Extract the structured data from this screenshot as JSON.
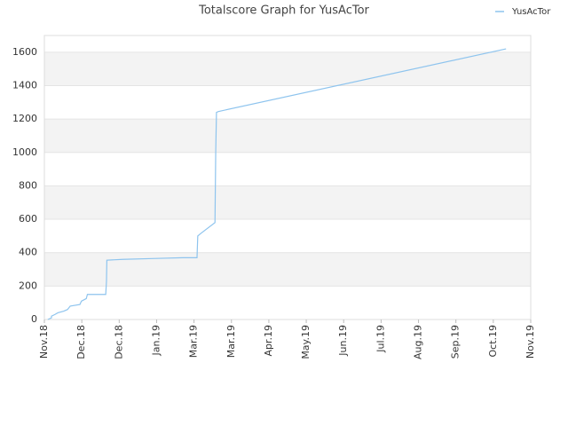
{
  "chart_data": {
    "type": "line",
    "title": "Totalscore Graph for YusAcTor",
    "x": [
      0.09,
      0.19,
      0.19,
      0.28,
      0.36,
      0.52,
      0.62,
      0.69,
      0.95,
      0.99,
      1.12,
      1.15,
      1.64,
      1.66,
      1.67,
      2.09,
      2.89,
      3.7,
      4.08,
      4.1,
      4.18,
      4.56,
      4.58,
      4.6,
      4.65,
      12.34
    ],
    "series": [
      {
        "name": "YusAcTor",
        "color": "#8ec4ee",
        "values": [
          0,
          10,
          20,
          30,
          40,
          50,
          60,
          80,
          90,
          110,
          125,
          150,
          150,
          230,
          355,
          360,
          365,
          370,
          370,
          500,
          515,
          580,
          1000,
          1240,
          1245,
          1620
        ]
      }
    ],
    "xlim": [
      0,
      13
    ],
    "xticks": [
      {
        "value": 0,
        "label": "Nov.18"
      },
      {
        "value": 1,
        "label": "Dec.18"
      },
      {
        "value": 2,
        "label": "Dec.18"
      },
      {
        "value": 3,
        "label": "Jan.19"
      },
      {
        "value": 4,
        "label": "Mar.19"
      },
      {
        "value": 5,
        "label": "Mar.19"
      },
      {
        "value": 6,
        "label": "Apr.19"
      },
      {
        "value": 7,
        "label": "May.19"
      },
      {
        "value": 8,
        "label": "Jun.19"
      },
      {
        "value": 9,
        "label": "Jul.19"
      },
      {
        "value": 10,
        "label": "Aug.19"
      },
      {
        "value": 11,
        "label": "Sep.19"
      },
      {
        "value": 12,
        "label": "Oct.19"
      },
      {
        "value": 13,
        "label": "Nov.19"
      }
    ],
    "ylim": [
      0,
      1700
    ],
    "yticks": [
      0,
      200,
      400,
      600,
      800,
      1000,
      1200,
      1400,
      1600
    ],
    "grid": true,
    "legend": "top-right"
  }
}
